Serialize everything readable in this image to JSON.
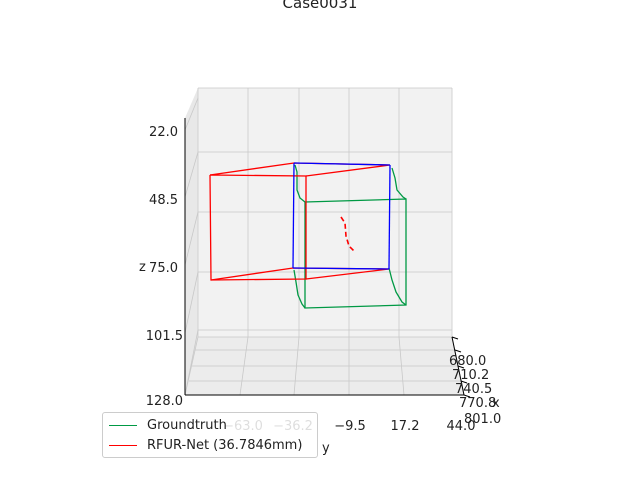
{
  "chart_data": {
    "type": "line",
    "projection": "3d",
    "title": "Case0031",
    "xlabel": "x",
    "ylabel": "y",
    "zlabel": "z",
    "x_ticks": [
      "680.0",
      "710.2",
      "740.5",
      "770.8",
      "801.0"
    ],
    "y_ticks": [
      "−63.0",
      "−36.2",
      "−9.5",
      "17.2",
      "44.0"
    ],
    "z_ticks": [
      "22.0",
      "48.5",
      "75.0",
      "101.5",
      "128.0"
    ],
    "xlim": [
      680.0,
      801.0
    ],
    "ylim": [
      -63.0,
      44.0
    ],
    "zlim": [
      22.0,
      128.0
    ],
    "z_inverted": true,
    "grid": true,
    "legend_position": "lower-left",
    "colors": {
      "groundtruth": "#009944",
      "prediction": "#ff0000",
      "overlap": "#0000ff"
    },
    "series": [
      {
        "name": "Groundtruth",
        "color": "#009944",
        "shape": "box wireframe"
      },
      {
        "name": "RFUR-Net (36.7846mm)",
        "color": "#ff0000",
        "shape": "box wireframe with centerline"
      }
    ]
  }
}
